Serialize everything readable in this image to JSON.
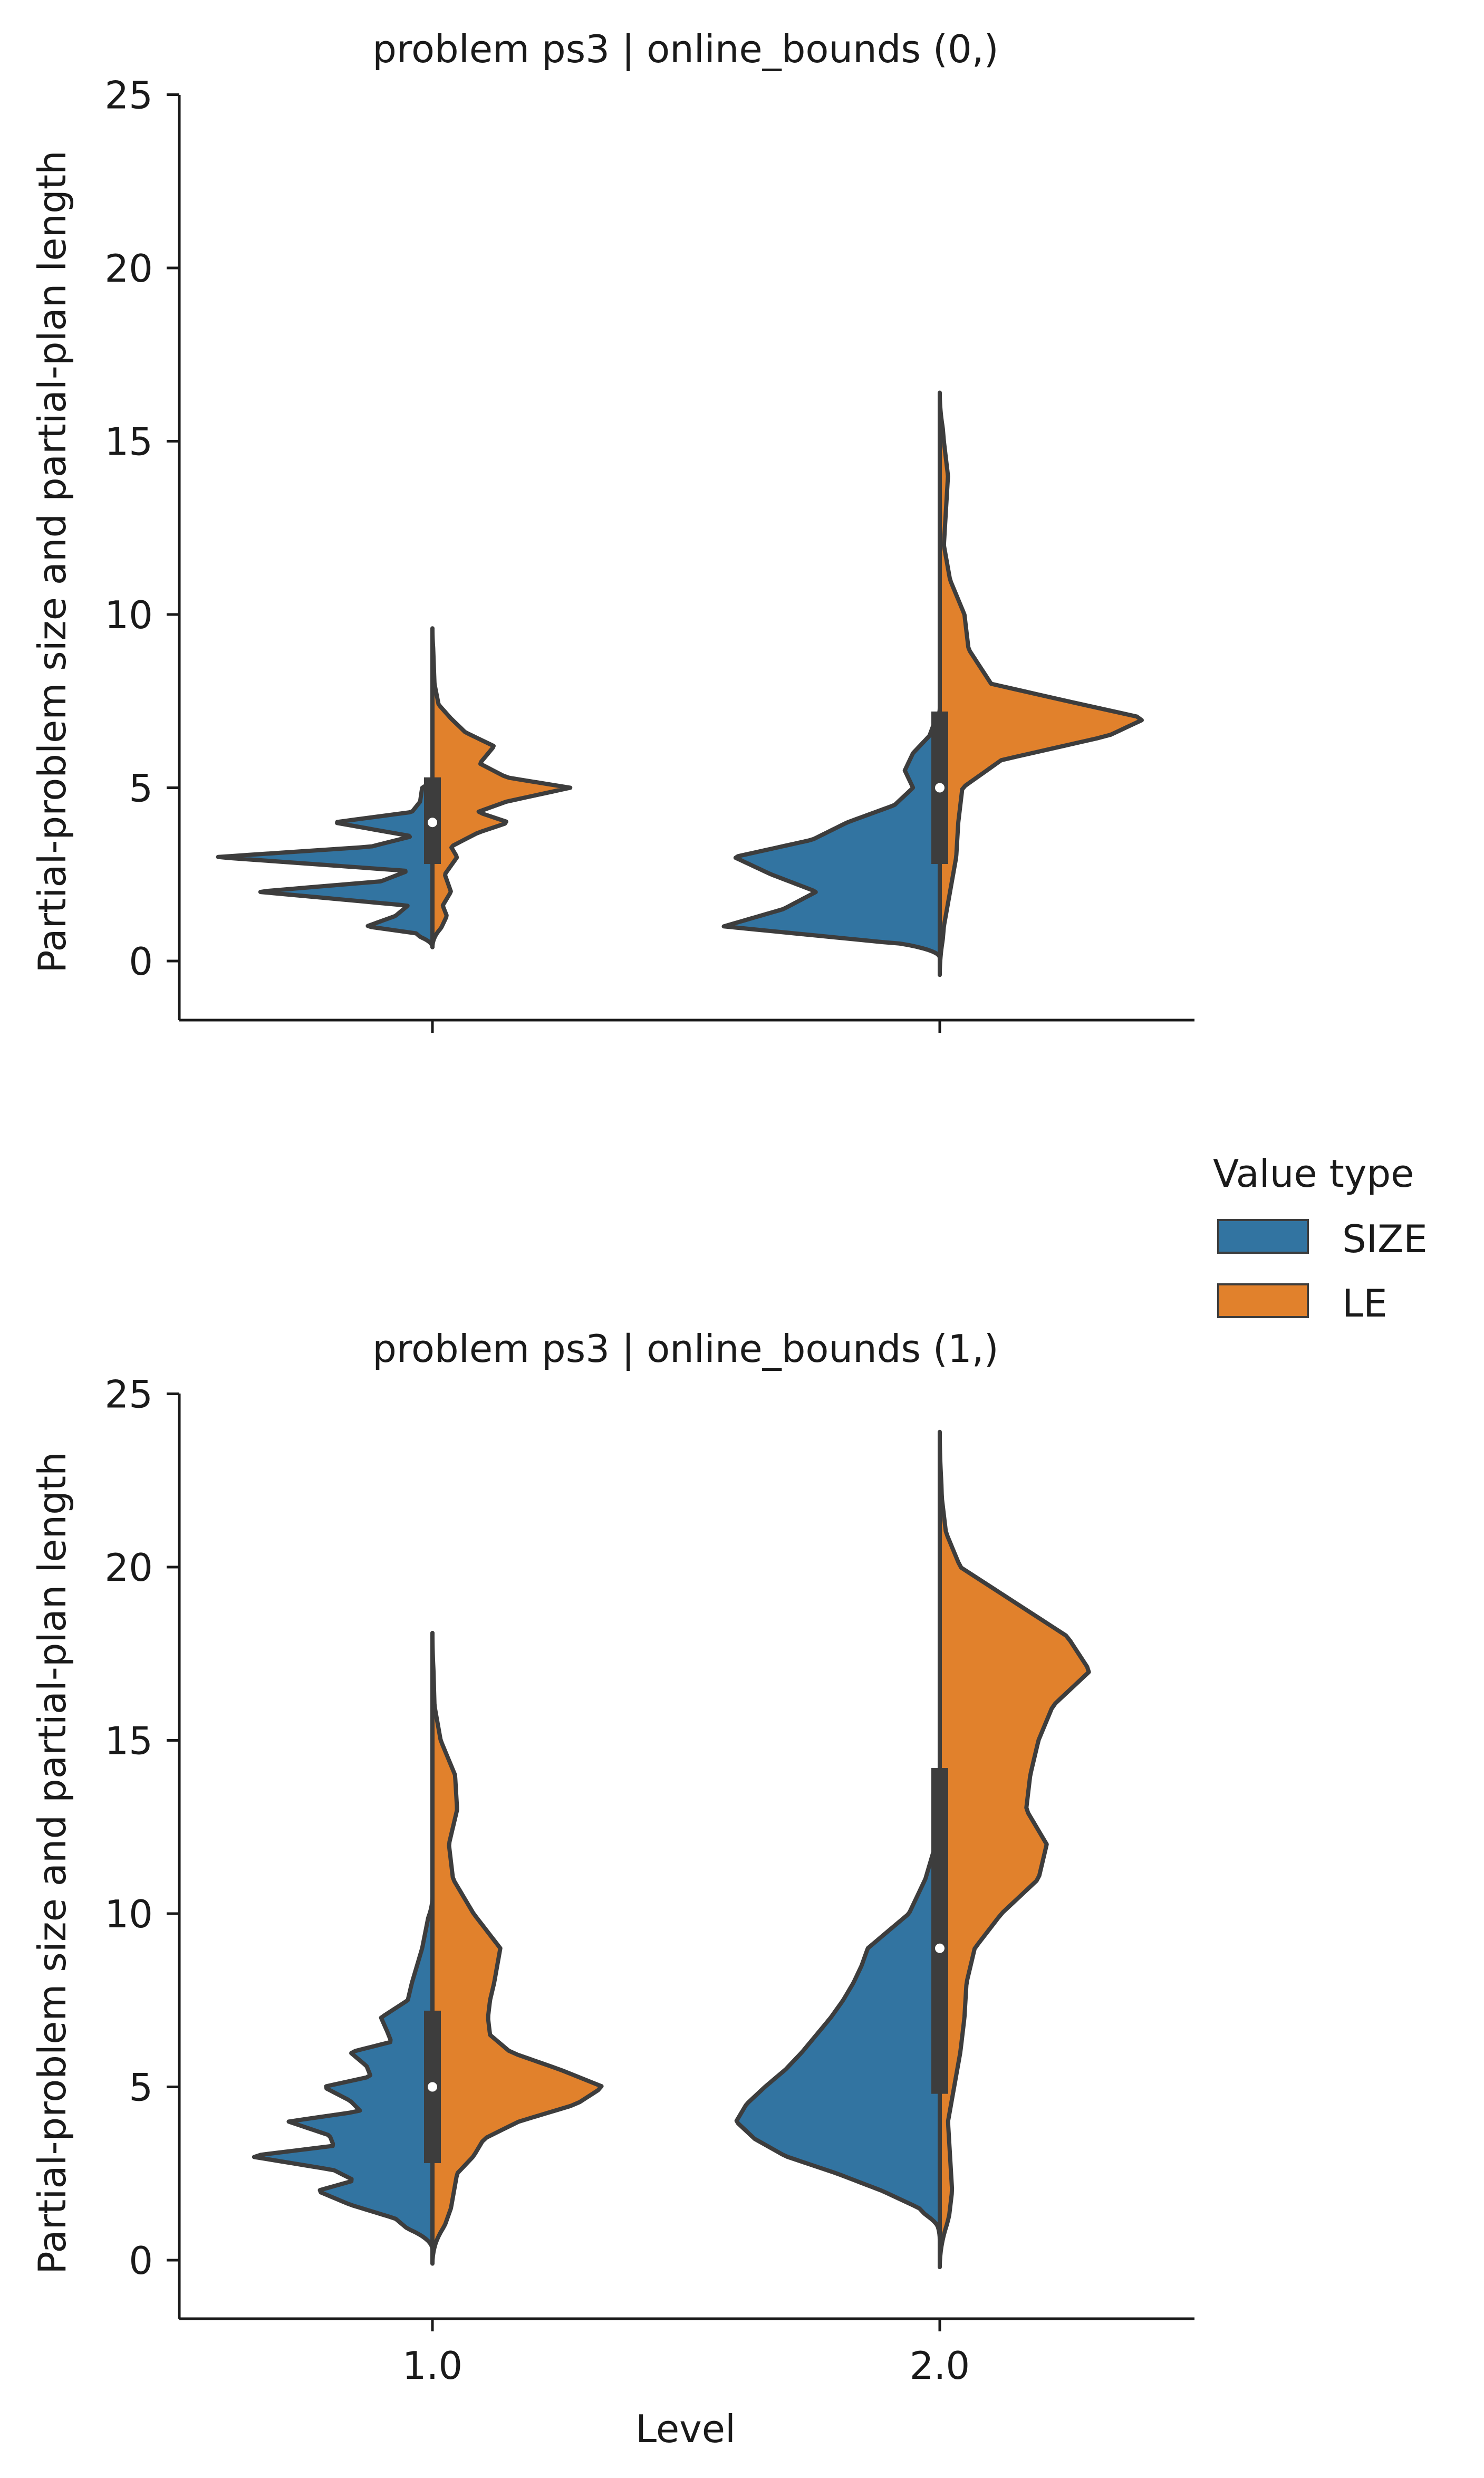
{
  "figure": {
    "legend_title": "Value type",
    "legend_items": [
      {
        "label": "SIZE",
        "color": "#3274a1"
      },
      {
        "label": "LE",
        "color": "#e1812c"
      }
    ]
  },
  "chart_data": [
    {
      "type": "violin",
      "title": "problem ps3 | online_bounds (0,)",
      "xlabel": "",
      "ylabel": "Partial-problem size and partial-plan length",
      "categories": [
        "1.0",
        "2.0"
      ],
      "yticks": [
        "0",
        "5",
        "10",
        "15",
        "20",
        "25"
      ],
      "ylim": [
        -1.7,
        25.2
      ],
      "split": true,
      "series": [
        {
          "name": "SIZE",
          "color": "#3274a1"
        },
        {
          "name": "LE",
          "color": "#e1812c"
        }
      ],
      "violins": [
        {
          "category": "1.0",
          "SIZE": {
            "min": 0.4,
            "max": 5.3,
            "profile": [
              [
                0.4,
                0.0
              ],
              [
                0.8,
                0.08
              ],
              [
                1.0,
                0.32
              ],
              [
                1.3,
                0.18
              ],
              [
                1.6,
                0.12
              ],
              [
                2.0,
                0.85
              ],
              [
                2.3,
                0.25
              ],
              [
                2.6,
                0.12
              ],
              [
                3.0,
                1.05
              ],
              [
                3.3,
                0.3
              ],
              [
                3.6,
                0.1
              ],
              [
                4.0,
                0.48
              ],
              [
                4.3,
                0.1
              ],
              [
                4.6,
                0.06
              ],
              [
                5.0,
                0.05
              ],
              [
                5.3,
                0.0
              ]
            ]
          },
          "LE": {
            "min": 0.4,
            "max": 9.6,
            "profile": [
              [
                0.4,
                0.0
              ],
              [
                0.8,
                0.03
              ],
              [
                1.3,
                0.07
              ],
              [
                1.6,
                0.05
              ],
              [
                2.0,
                0.09
              ],
              [
                2.5,
                0.06
              ],
              [
                3.0,
                0.12
              ],
              [
                3.3,
                0.09
              ],
              [
                3.7,
                0.22
              ],
              [
                4.0,
                0.37
              ],
              [
                4.3,
                0.22
              ],
              [
                4.6,
                0.36
              ],
              [
                5.0,
                0.67
              ],
              [
                5.3,
                0.36
              ],
              [
                5.7,
                0.23
              ],
              [
                6.2,
                0.3
              ],
              [
                6.6,
                0.16
              ],
              [
                7.0,
                0.09
              ],
              [
                7.4,
                0.03
              ],
              [
                8.0,
                0.01
              ],
              [
                9.6,
                0.0
              ]
            ]
          },
          "box": {
            "q1": 2.8,
            "q3": 5.3,
            "median": 4.0
          }
        },
        {
          "category": "2.0",
          "SIZE": {
            "min": 0.1,
            "max": 7.3,
            "profile": [
              [
                0.1,
                0.0
              ],
              [
                0.5,
                0.2
              ],
              [
                1.0,
                1.05
              ],
              [
                1.5,
                0.76
              ],
              [
                2.0,
                0.6
              ],
              [
                2.5,
                0.82
              ],
              [
                3.0,
                1.0
              ],
              [
                3.5,
                0.62
              ],
              [
                4.0,
                0.45
              ],
              [
                4.5,
                0.22
              ],
              [
                5.0,
                0.13
              ],
              [
                5.5,
                0.17
              ],
              [
                6.0,
                0.13
              ],
              [
                6.5,
                0.05
              ],
              [
                7.3,
                0.0
              ]
            ]
          },
          "LE": {
            "min": -0.4,
            "max": 16.4,
            "profile": [
              [
                -0.4,
                0.0
              ],
              [
                1.0,
                0.02
              ],
              [
                2.0,
                0.05
              ],
              [
                3.0,
                0.08
              ],
              [
                4.0,
                0.09
              ],
              [
                5.0,
                0.11
              ],
              [
                5.8,
                0.3
              ],
              [
                6.5,
                0.82
              ],
              [
                7.0,
                1.0
              ],
              [
                7.5,
                0.62
              ],
              [
                8.0,
                0.25
              ],
              [
                9.0,
                0.14
              ],
              [
                10.0,
                0.12
              ],
              [
                11.0,
                0.05
              ],
              [
                12.0,
                0.02
              ],
              [
                14.0,
                0.04
              ],
              [
                15.0,
                0.02
              ],
              [
                16.4,
                0.0
              ]
            ]
          },
          "box": {
            "q1": 2.8,
            "q3": 7.2,
            "median": 5.0
          }
        }
      ]
    },
    {
      "type": "violin",
      "title": "problem ps3 | online_bounds (1,)",
      "xlabel": "Level",
      "ylabel": "Partial-problem size and partial-plan length",
      "categories": [
        "1.0",
        "2.0"
      ],
      "yticks": [
        "0",
        "5",
        "10",
        "15",
        "20",
        "25"
      ],
      "ylim": [
        -1.7,
        25.2
      ],
      "split": true,
      "series": [
        {
          "name": "SIZE",
          "color": "#3274a1"
        },
        {
          "name": "LE",
          "color": "#e1812c"
        }
      ],
      "violins": [
        {
          "category": "1.0",
          "SIZE": {
            "min": 0.3,
            "max": 10.5,
            "profile": [
              [
                0.3,
                0.0
              ],
              [
                0.7,
                0.08
              ],
              [
                1.2,
                0.18
              ],
              [
                1.6,
                0.4
              ],
              [
                2.0,
                0.56
              ],
              [
                2.3,
                0.38
              ],
              [
                2.6,
                0.48
              ],
              [
                3.0,
                0.89
              ],
              [
                3.3,
                0.48
              ],
              [
                3.6,
                0.5
              ],
              [
                4.0,
                0.7
              ],
              [
                4.3,
                0.35
              ],
              [
                4.6,
                0.4
              ],
              [
                5.0,
                0.53
              ],
              [
                5.3,
                0.3
              ],
              [
                5.6,
                0.32
              ],
              [
                6.0,
                0.4
              ],
              [
                6.3,
                0.2
              ],
              [
                6.6,
                0.22
              ],
              [
                7.0,
                0.25
              ],
              [
                7.5,
                0.12
              ],
              [
                8.0,
                0.1
              ],
              [
                9.0,
                0.05
              ],
              [
                10.5,
                0.0
              ]
            ]
          },
          "LE": {
            "min": -0.1,
            "max": 18.1,
            "profile": [
              [
                -0.1,
                0.0
              ],
              [
                0.5,
                0.03
              ],
              [
                1.5,
                0.09
              ],
              [
                2.5,
                0.12
              ],
              [
                3.0,
                0.2
              ],
              [
                3.5,
                0.25
              ],
              [
                4.0,
                0.42
              ],
              [
                4.5,
                0.7
              ],
              [
                5.0,
                0.83
              ],
              [
                5.5,
                0.62
              ],
              [
                6.0,
                0.38
              ],
              [
                6.5,
                0.28
              ],
              [
                7.0,
                0.27
              ],
              [
                7.5,
                0.28
              ],
              [
                8.0,
                0.3
              ],
              [
                9.0,
                0.33
              ],
              [
                10.0,
                0.2
              ],
              [
                11.0,
                0.1
              ],
              [
                12.0,
                0.08
              ],
              [
                13.0,
                0.12
              ],
              [
                14.0,
                0.11
              ],
              [
                15.0,
                0.04
              ],
              [
                16.0,
                0.01
              ],
              [
                18.1,
                0.0
              ]
            ]
          },
          "box": {
            "q1": 2.8,
            "q3": 7.2,
            "median": 5.0
          }
        },
        {
          "category": "2.0",
          "SIZE": {
            "min": 0.6,
            "max": 12.5,
            "profile": [
              [
                0.6,
                0.0
              ],
              [
                1.0,
                0.02
              ],
              [
                1.5,
                0.1
              ],
              [
                2.0,
                0.28
              ],
              [
                2.5,
                0.5
              ],
              [
                3.0,
                0.75
              ],
              [
                3.5,
                0.9
              ],
              [
                4.0,
                0.99
              ],
              [
                4.5,
                0.94
              ],
              [
                5.0,
                0.85
              ],
              [
                5.5,
                0.75
              ],
              [
                6.0,
                0.67
              ],
              [
                6.5,
                0.6
              ],
              [
                7.0,
                0.53
              ],
              [
                7.5,
                0.47
              ],
              [
                8.0,
                0.42
              ],
              [
                8.5,
                0.38
              ],
              [
                9.0,
                0.35
              ],
              [
                9.5,
                0.25
              ],
              [
                10.0,
                0.15
              ],
              [
                11.0,
                0.07
              ],
              [
                12.0,
                0.02
              ],
              [
                12.5,
                0.0
              ]
            ]
          },
          "LE": {
            "min": -0.2,
            "max": 23.9,
            "profile": [
              [
                -0.2,
                0.0
              ],
              [
                1.0,
                0.04
              ],
              [
                2.0,
                0.06
              ],
              [
                3.0,
                0.05
              ],
              [
                4.0,
                0.04
              ],
              [
                5.0,
                0.07
              ],
              [
                6.0,
                0.1
              ],
              [
                7.0,
                0.12
              ],
              [
                8.0,
                0.13
              ],
              [
                9.0,
                0.17
              ],
              [
                10.0,
                0.3
              ],
              [
                11.0,
                0.48
              ],
              [
                12.0,
                0.52
              ],
              [
                13.0,
                0.42
              ],
              [
                14.0,
                0.44
              ],
              [
                15.0,
                0.48
              ],
              [
                16.0,
                0.55
              ],
              [
                17.0,
                0.73
              ],
              [
                18.0,
                0.62
              ],
              [
                19.0,
                0.36
              ],
              [
                20.0,
                0.1
              ],
              [
                21.0,
                0.03
              ],
              [
                22.0,
                0.01
              ],
              [
                23.9,
                0.0
              ]
            ]
          },
          "box": {
            "q1": 4.8,
            "q3": 14.2,
            "median": 9.0
          }
        }
      ]
    }
  ]
}
